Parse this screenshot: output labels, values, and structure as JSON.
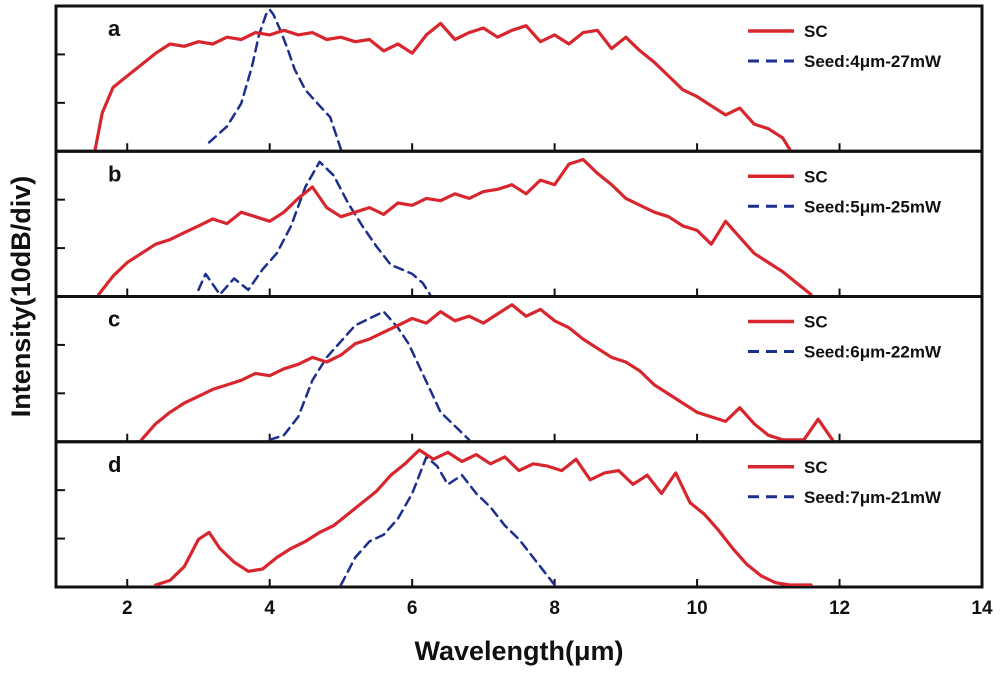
{
  "chart_data": {
    "type": "line",
    "layout": "4 vertically stacked panels sharing the x axis",
    "xlabel": "Wavelength(μm)",
    "ylabel": "Intensity(10dB/div)",
    "xlim": [
      1,
      14
    ],
    "xticks": [
      2,
      4,
      6,
      8,
      10,
      12,
      14
    ],
    "ylim": [
      0,
      3
    ],
    "y_unit_note": "each panel spans 3 divisions of 10 dB; no numeric y tick labels shown",
    "legend_placement": "top-right of each panel",
    "colors": {
      "sc": "#d8262e",
      "seed": "#1d2f8c",
      "frame": "#111111"
    },
    "panels": [
      {
        "letter": "a",
        "legend": [
          "SC",
          "Seed:4μm-27mW"
        ],
        "series": [
          {
            "name": "SC",
            "style": "solid",
            "x": [
              1.55,
              1.65,
              1.8,
              2.0,
              2.2,
              2.4,
              2.6,
              2.8,
              3.0,
              3.2,
              3.4,
              3.6,
              3.8,
              4.0,
              4.2,
              4.4,
              4.6,
              4.8,
              5.0,
              5.2,
              5.4,
              5.6,
              5.8,
              6.0,
              6.2,
              6.4,
              6.6,
              6.8,
              7.0,
              7.2,
              7.4,
              7.6,
              7.8,
              8.0,
              8.2,
              8.4,
              8.6,
              8.8,
              9.0,
              9.2,
              9.4,
              9.6,
              9.8,
              10.0,
              10.2,
              10.4,
              10.6,
              10.8,
              11.0,
              11.2,
              11.3
            ],
            "y": [
              0.0,
              0.8,
              1.35,
              1.6,
              1.85,
              2.1,
              2.3,
              2.25,
              2.35,
              2.3,
              2.45,
              2.4,
              2.55,
              2.5,
              2.6,
              2.5,
              2.55,
              2.4,
              2.45,
              2.35,
              2.4,
              2.15,
              2.3,
              2.1,
              2.5,
              2.75,
              2.4,
              2.55,
              2.65,
              2.45,
              2.6,
              2.7,
              2.35,
              2.5,
              2.3,
              2.55,
              2.6,
              2.2,
              2.45,
              2.15,
              1.9,
              1.6,
              1.3,
              1.15,
              0.95,
              0.75,
              0.9,
              0.55,
              0.45,
              0.25,
              0.0
            ]
          },
          {
            "name": "Seed:4μm-27mW",
            "style": "dashed",
            "x": [
              3.15,
              3.4,
              3.6,
              3.75,
              3.85,
              3.95,
              4.0,
              4.05,
              4.15,
              4.25,
              4.35,
              4.5,
              4.7,
              4.85,
              5.0
            ],
            "y": [
              0.15,
              0.5,
              1.0,
              1.8,
              2.5,
              2.95,
              3.05,
              2.95,
              2.6,
              2.2,
              1.75,
              1.3,
              0.95,
              0.7,
              0.0
            ]
          }
        ]
      },
      {
        "letter": "b",
        "legend": [
          "SC",
          "Seed:5μm-25mW"
        ],
        "series": [
          {
            "name": "SC",
            "style": "solid",
            "x": [
              1.6,
              1.8,
              2.0,
              2.2,
              2.4,
              2.6,
              2.8,
              3.0,
              3.2,
              3.4,
              3.6,
              3.8,
              4.0,
              4.2,
              4.4,
              4.6,
              4.8,
              5.0,
              5.2,
              5.4,
              5.6,
              5.8,
              6.0,
              6.2,
              6.4,
              6.6,
              6.8,
              7.0,
              7.2,
              7.4,
              7.6,
              7.8,
              8.0,
              8.2,
              8.4,
              8.6,
              8.8,
              9.0,
              9.2,
              9.4,
              9.6,
              9.8,
              10.0,
              10.2,
              10.4,
              10.6,
              10.8,
              11.0,
              11.2,
              11.4,
              11.6
            ],
            "y": [
              0.0,
              0.4,
              0.7,
              0.9,
              1.1,
              1.2,
              1.35,
              1.5,
              1.65,
              1.55,
              1.8,
              1.7,
              1.6,
              1.8,
              2.1,
              2.35,
              1.9,
              1.7,
              1.8,
              1.9,
              1.75,
              2.0,
              1.95,
              2.1,
              2.05,
              2.2,
              2.1,
              2.25,
              2.3,
              2.4,
              2.2,
              2.5,
              2.4,
              2.85,
              2.95,
              2.65,
              2.4,
              2.1,
              1.95,
              1.8,
              1.7,
              1.5,
              1.4,
              1.1,
              1.6,
              1.25,
              0.9,
              0.7,
              0.5,
              0.25,
              0.0
            ]
          },
          {
            "name": "Seed:5μm-25mW",
            "style": "dashed",
            "x": [
              3.0,
              3.1,
              3.3,
              3.5,
              3.7,
              3.9,
              4.1,
              4.3,
              4.5,
              4.7,
              4.9,
              5.1,
              5.3,
              5.5,
              5.7,
              5.85,
              6.0,
              6.15,
              6.25
            ],
            "y": [
              0.1,
              0.45,
              0.0,
              0.35,
              0.1,
              0.55,
              0.9,
              1.5,
              2.35,
              2.9,
              2.6,
              2.0,
              1.5,
              1.05,
              0.65,
              0.55,
              0.45,
              0.25,
              0.0
            ]
          }
        ]
      },
      {
        "letter": "c",
        "legend": [
          "SC",
          "Seed:6μm-22mW"
        ],
        "series": [
          {
            "name": "SC",
            "style": "solid",
            "x": [
              2.2,
              2.4,
              2.6,
              2.8,
              3.0,
              3.2,
              3.4,
              3.6,
              3.8,
              4.0,
              4.2,
              4.4,
              4.6,
              4.8,
              5.0,
              5.2,
              5.4,
              5.6,
              5.8,
              6.0,
              6.2,
              6.4,
              6.6,
              6.8,
              7.0,
              7.2,
              7.4,
              7.6,
              7.8,
              8.0,
              8.2,
              8.4,
              8.6,
              8.8,
              9.0,
              9.2,
              9.4,
              9.6,
              9.8,
              10.0,
              10.2,
              10.4,
              10.6,
              10.8,
              11.0,
              11.2,
              11.5,
              11.7,
              11.9
            ],
            "y": [
              0.0,
              0.35,
              0.6,
              0.8,
              0.95,
              1.1,
              1.2,
              1.3,
              1.45,
              1.4,
              1.55,
              1.65,
              1.8,
              1.7,
              1.85,
              2.1,
              2.2,
              2.35,
              2.5,
              2.65,
              2.55,
              2.8,
              2.6,
              2.7,
              2.55,
              2.75,
              2.95,
              2.7,
              2.85,
              2.6,
              2.45,
              2.2,
              2.0,
              1.8,
              1.7,
              1.5,
              1.2,
              1.0,
              0.8,
              0.6,
              0.5,
              0.4,
              0.7,
              0.35,
              0.1,
              0.0,
              0.0,
              0.45,
              0.0
            ]
          },
          {
            "name": "Seed:6μm-22mW",
            "style": "dashed",
            "x": [
              4.0,
              4.2,
              4.4,
              4.6,
              4.8,
              5.0,
              5.2,
              5.4,
              5.6,
              5.8,
              5.95,
              6.1,
              6.25,
              6.4,
              6.6,
              6.8
            ],
            "y": [
              0.0,
              0.1,
              0.5,
              1.3,
              1.8,
              2.15,
              2.5,
              2.65,
              2.8,
              2.45,
              2.1,
              1.6,
              1.1,
              0.6,
              0.3,
              0.0
            ]
          }
        ]
      },
      {
        "letter": "d",
        "legend": [
          "SC",
          "Seed:7μm-21mW"
        ],
        "series": [
          {
            "name": "SC",
            "style": "solid",
            "x": [
              2.4,
              2.6,
              2.8,
              3.0,
              3.15,
              3.3,
              3.5,
              3.7,
              3.9,
              4.1,
              4.3,
              4.5,
              4.7,
              4.9,
              5.1,
              5.3,
              5.5,
              5.7,
              5.9,
              6.1,
              6.3,
              6.5,
              6.7,
              6.9,
              7.1,
              7.3,
              7.5,
              7.7,
              7.9,
              8.1,
              8.3,
              8.5,
              8.7,
              8.9,
              9.1,
              9.3,
              9.5,
              9.7,
              9.9,
              10.1,
              10.3,
              10.5,
              10.7,
              10.9,
              11.1,
              11.3,
              11.6
            ],
            "y": [
              0.0,
              0.1,
              0.4,
              1.0,
              1.15,
              0.8,
              0.5,
              0.3,
              0.35,
              0.6,
              0.8,
              0.95,
              1.15,
              1.3,
              1.55,
              1.8,
              2.05,
              2.4,
              2.65,
              2.95,
              2.75,
              2.9,
              2.7,
              2.85,
              2.65,
              2.8,
              2.5,
              2.65,
              2.6,
              2.5,
              2.75,
              2.3,
              2.45,
              2.5,
              2.2,
              2.4,
              2.0,
              2.45,
              1.8,
              1.55,
              1.2,
              0.8,
              0.45,
              0.2,
              0.05,
              0.0,
              0.0
            ]
          },
          {
            "name": "Seed:7μm-21mW",
            "style": "dashed",
            "x": [
              5.0,
              5.2,
              5.4,
              5.6,
              5.8,
              6.0,
              6.2,
              6.35,
              6.5,
              6.7,
              6.9,
              7.1,
              7.3,
              7.5,
              7.7,
              7.9,
              8.0
            ],
            "y": [
              0.0,
              0.6,
              0.95,
              1.1,
              1.45,
              2.0,
              2.8,
              2.6,
              2.2,
              2.4,
              2.0,
              1.7,
              1.3,
              1.0,
              0.6,
              0.2,
              0.0
            ]
          }
        ]
      }
    ]
  }
}
